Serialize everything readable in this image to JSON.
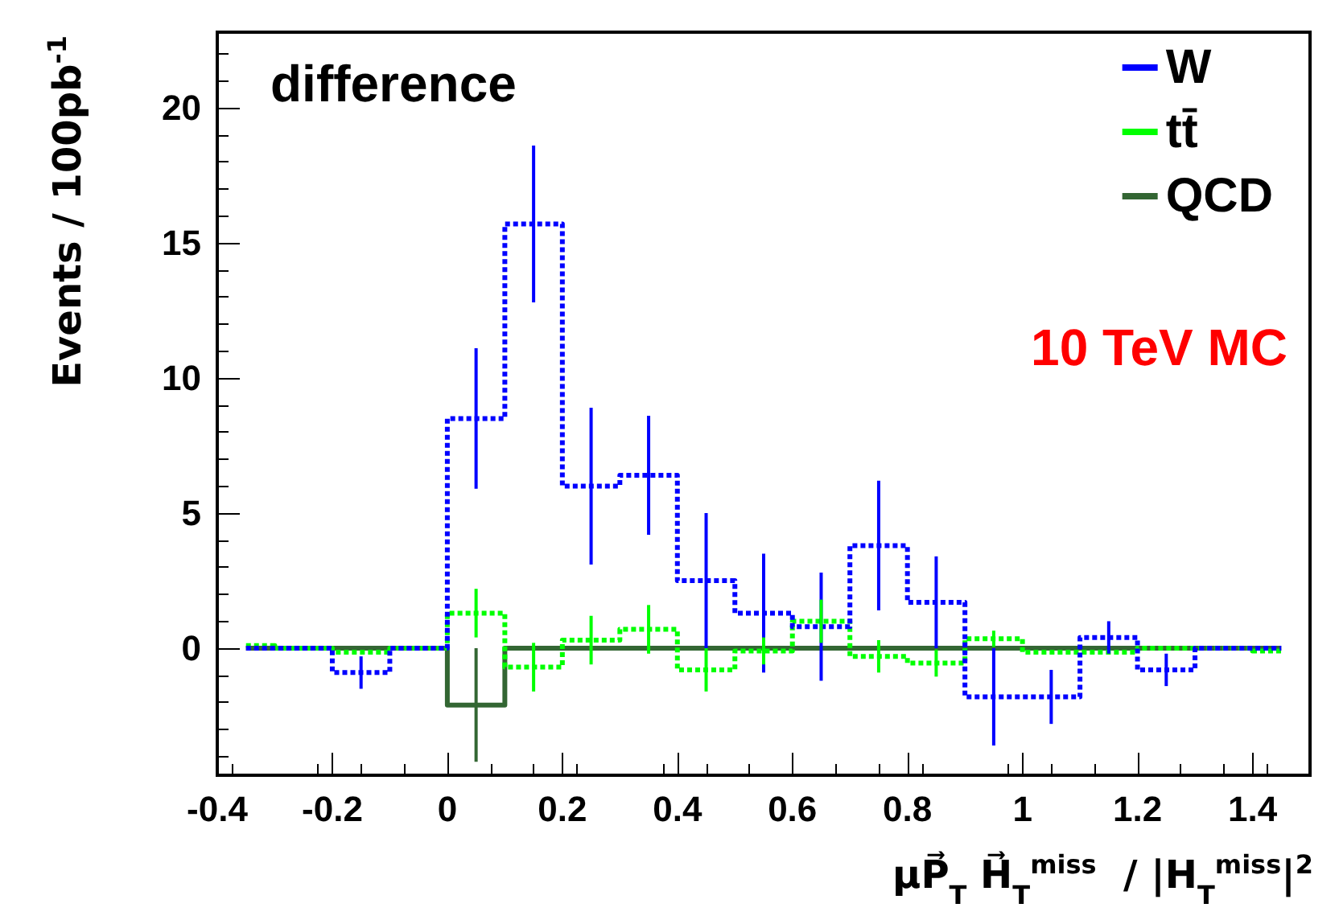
{
  "chart_data": {
    "type": "step",
    "xlabel": "μP⃗$_{T}$ H⃗$_{T}$$^{miss}$  / |H$_{T}$$^{miss}$|$^{2}$",
    "ylabel": "Events / 100pb$^{-1}$",
    "annotations": [
      "difference",
      "10 TeV MC"
    ],
    "x": [
      -0.35,
      -0.25,
      -0.15,
      -0.05,
      0.05,
      0.15,
      0.25,
      0.35,
      0.45,
      0.55,
      0.65,
      0.75,
      0.85,
      0.95,
      1.05,
      1.15,
      1.25,
      1.35,
      1.45
    ],
    "series": [
      {
        "name": "W",
        "color": "#0000ff",
        "line_style": "dotted",
        "values": [
          0,
          0,
          -0.9,
          0,
          8.5,
          15.7,
          6.0,
          6.4,
          2.5,
          1.3,
          0.8,
          3.8,
          1.7,
          -1.8,
          -1.8,
          0.4,
          -0.8,
          0,
          0
        ],
        "errors": [
          null,
          null,
          0.6,
          null,
          2.6,
          2.9,
          2.9,
          2.2,
          2.5,
          2.2,
          2.0,
          2.4,
          1.7,
          1.8,
          1.0,
          0.6,
          0.6,
          null,
          null
        ]
      },
      {
        "name": "tt̄",
        "color": "#00ff00",
        "line_style": "dotted",
        "values": [
          0.1,
          0,
          -0.15,
          0,
          1.3,
          -0.7,
          0.3,
          0.7,
          -0.8,
          -0.1,
          1.0,
          -0.3,
          -0.55,
          0.35,
          -0.15,
          -0.15,
          0,
          0,
          -0.1
        ],
        "errors": [
          null,
          null,
          null,
          null,
          0.9,
          0.9,
          0.9,
          0.9,
          0.8,
          0.5,
          0.8,
          0.6,
          0.5,
          0.3,
          null,
          null,
          null,
          null,
          null
        ]
      },
      {
        "name": "QCD",
        "color": "#336633",
        "line_style": "solid",
        "values": [
          0,
          0,
          0,
          0,
          -2.1,
          0,
          0,
          0,
          0,
          0,
          0,
          0,
          0,
          0,
          0,
          0,
          0,
          0,
          0
        ],
        "errors": [
          null,
          null,
          null,
          null,
          2.1,
          null,
          null,
          null,
          null,
          null,
          null,
          null,
          null,
          null,
          null,
          null,
          null,
          null,
          null
        ]
      }
    ],
    "xlim": [
      -0.4,
      1.5
    ],
    "ylim": [
      -4.7,
      22.8
    ],
    "xticks": [
      -0.4,
      -0.2,
      0,
      0.2,
      0.4,
      0.6,
      0.8,
      1,
      1.2,
      1.4
    ],
    "yticks": [
      0,
      5,
      10,
      15,
      20
    ],
    "grid": false,
    "legend": "top right"
  }
}
